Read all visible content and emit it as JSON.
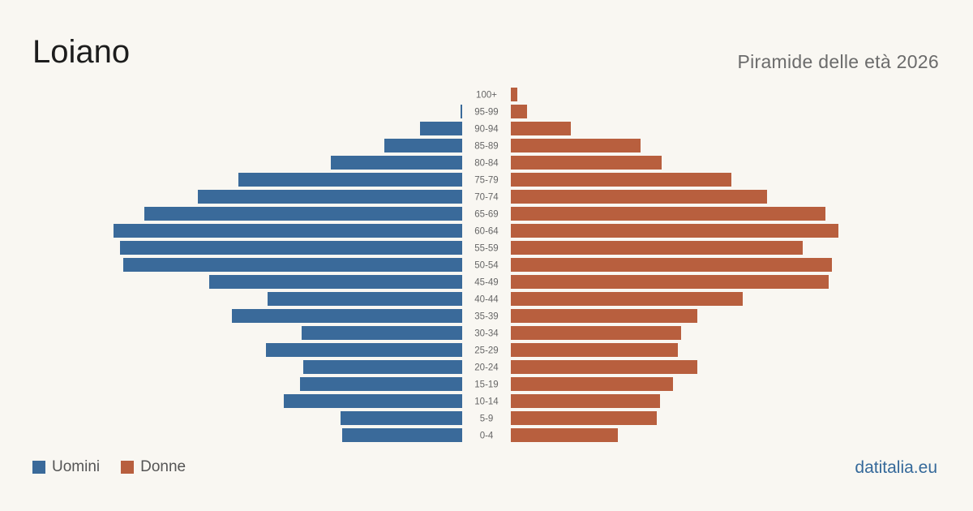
{
  "title": "Loiano",
  "subtitle": "Piramide delle età 2026",
  "brand": "datitalia.eu",
  "legend": {
    "men_label": "Uomini",
    "women_label": "Donne"
  },
  "colors": {
    "men": "#3a6a9a",
    "women": "#b85f3e",
    "background": "#f9f7f2"
  },
  "chart_data": {
    "type": "bar",
    "orientation": "horizontal-pyramid",
    "categories": [
      "100+",
      "95-99",
      "90-94",
      "85-89",
      "80-84",
      "75-79",
      "70-74",
      "65-69",
      "60-64",
      "55-59",
      "50-54",
      "45-49",
      "40-44",
      "35-39",
      "30-34",
      "25-29",
      "20-24",
      "15-19",
      "10-14",
      "5-9",
      "0-4"
    ],
    "series": [
      {
        "name": "Uomini",
        "values": [
          0,
          1,
          26,
          48,
          81,
          138,
          163,
          196,
          215,
          211,
          209,
          156,
          120,
          142,
          99,
          121,
          98,
          100,
          110,
          75,
          74
        ]
      },
      {
        "name": "Donne",
        "values": [
          4,
          10,
          37,
          80,
          93,
          136,
          158,
          194,
          202,
          180,
          198,
          196,
          143,
          115,
          105,
          103,
          115,
          100,
          92,
          90,
          66
        ]
      }
    ]
  }
}
